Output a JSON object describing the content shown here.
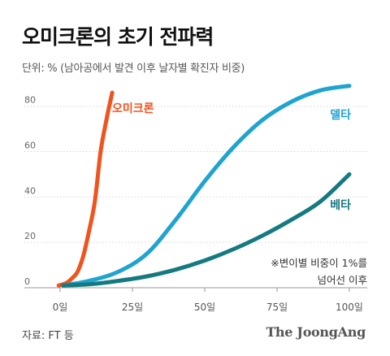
{
  "header": {
    "title": "오미크론의 초기 전파력",
    "subtitle": "단위: % (남아공에서 발견 이후 날자별 확진자 비중)"
  },
  "footer": {
    "source": "자료: FT 등",
    "brand": "The JoongAng"
  },
  "chart_data": {
    "type": "line",
    "title": "오미크론의 초기 전파력",
    "ylabel": "단위: %",
    "xlim": [
      0,
      100
    ],
    "ylim": [
      0,
      90
    ],
    "x_ticks": [
      0,
      25,
      50,
      75,
      100
    ],
    "x_tick_labels": [
      "0일",
      "25일",
      "50일",
      "75일",
      "100일"
    ],
    "y_ticks": [
      0,
      20,
      40,
      60,
      80
    ],
    "y_tick_labels": [
      "0",
      "20",
      "40",
      "60",
      "80"
    ],
    "grid": true,
    "annotation": "※변이별 비중이 1%를\n넘어선 이후",
    "series": [
      {
        "name": "오미크론",
        "color": "#f0541e",
        "x": [
          -0.5,
          2,
          4,
          6,
          8,
          10,
          12,
          14,
          16,
          17,
          18
        ],
        "y": [
          1,
          2,
          4,
          7,
          14,
          25,
          38,
          60,
          74,
          80,
          86
        ]
      },
      {
        "name": "델타",
        "color": "#1fa4cf",
        "x": [
          1,
          10,
          20,
          30,
          40,
          50,
          60,
          70,
          80,
          90,
          100
        ],
        "y": [
          1,
          3,
          7,
          15,
          30,
          47,
          62,
          74,
          82,
          87,
          89
        ]
      },
      {
        "name": "베타",
        "color": "#157a80",
        "x": [
          1,
          10,
          20,
          30,
          40,
          50,
          60,
          70,
          80,
          90,
          100
        ],
        "y": [
          1,
          1.5,
          3,
          5,
          8,
          12,
          17,
          23,
          30,
          38,
          50
        ]
      }
    ]
  }
}
